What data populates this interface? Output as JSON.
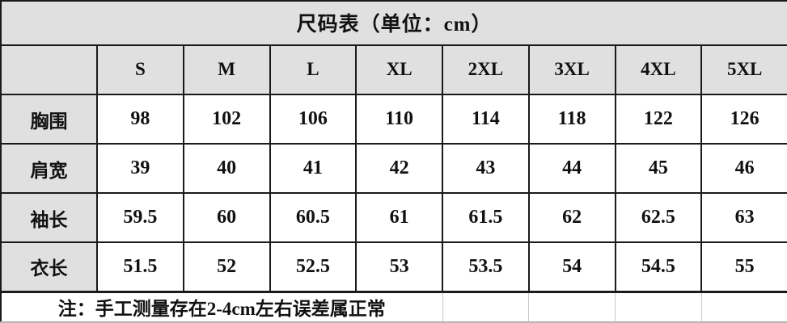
{
  "title": "尺码表（单位：cm）",
  "table": {
    "corner_label": "",
    "size_headers": [
      "S",
      "M",
      "L",
      "XL",
      "2XL",
      "3XL",
      "4XL",
      "5XL"
    ],
    "rows": [
      {
        "label": "胸围",
        "values": [
          "98",
          "102",
          "106",
          "110",
          "114",
          "118",
          "122",
          "126"
        ]
      },
      {
        "label": "肩宽",
        "values": [
          "39",
          "40",
          "41",
          "42",
          "43",
          "44",
          "45",
          "46"
        ]
      },
      {
        "label": "袖长",
        "values": [
          "59.5",
          "60",
          "60.5",
          "61",
          "61.5",
          "62",
          "62.5",
          "63"
        ]
      },
      {
        "label": "衣长",
        "values": [
          "51.5",
          "52",
          "52.5",
          "53",
          "53.5",
          "54",
          "54.5",
          "55"
        ]
      }
    ]
  },
  "note": "注：手工测量存在2-4cm左右误差属正常",
  "colors": {
    "header_bg": "#e0e0e0",
    "cell_bg": "#ffffff",
    "border": "#1a1a1a",
    "ghost_border": "#c9c9c9"
  }
}
